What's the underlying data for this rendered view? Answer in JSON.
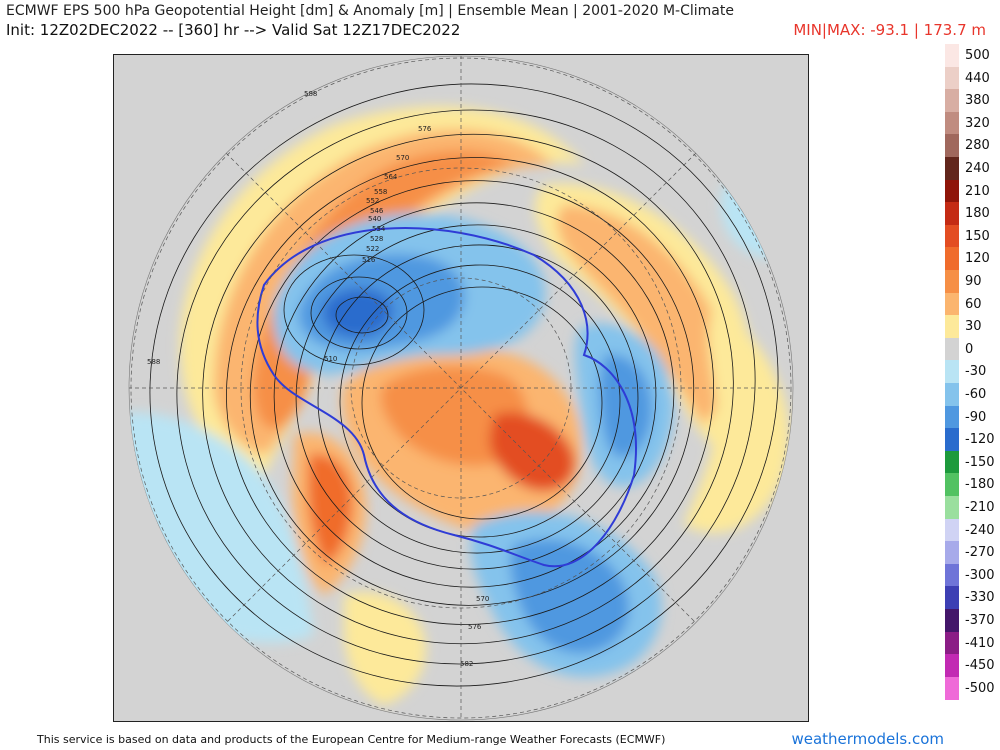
{
  "header": {
    "title_line1": "ECMWF EPS 500 hPa Geopotential Height [dm] & Anomaly [m] | Ensemble Mean | 2001-2020 M-Climate",
    "title_line2": "Init: 12Z02DEC2022 -- [360] hr --> Valid Sat 12Z17DEC2022",
    "minmax": "MIN|MAX: -93.1 | 173.7 m"
  },
  "map": {
    "contour_labels": [
      "576",
      "570",
      "564",
      "558",
      "552",
      "546",
      "540",
      "534",
      "528",
      "522",
      "516",
      "510",
      "588",
      "588",
      "582",
      "576",
      "570"
    ]
  },
  "colorbar": {
    "entries": [
      {
        "label": "500",
        "color": "#fbe7e4"
      },
      {
        "label": "440",
        "color": "#eccfc7"
      },
      {
        "label": "380",
        "color": "#d8aea3"
      },
      {
        "label": "320",
        "color": "#c08c80"
      },
      {
        "label": "280",
        "color": "#a0685d"
      },
      {
        "label": "240",
        "color": "#62261c"
      },
      {
        "label": "210",
        "color": "#8f1509"
      },
      {
        "label": "180",
        "color": "#c42b14"
      },
      {
        "label": "150",
        "color": "#e34d22"
      },
      {
        "label": "120",
        "color": "#f06c2c"
      },
      {
        "label": "90",
        "color": "#f68f46"
      },
      {
        "label": "60",
        "color": "#fbb56f"
      },
      {
        "label": "30",
        "color": "#fde99a"
      },
      {
        "label": "0",
        "color": "#d3d3d3"
      },
      {
        "label": "-30",
        "color": "#b9e4f4"
      },
      {
        "label": "-60",
        "color": "#84c3ec"
      },
      {
        "label": "-90",
        "color": "#4f98e0"
      },
      {
        "label": "-120",
        "color": "#2a6ccd"
      },
      {
        "label": "-150",
        "color": "#1d9a3c"
      },
      {
        "label": "-180",
        "color": "#52c262"
      },
      {
        "label": "-210",
        "color": "#9adf9e"
      },
      {
        "label": "-240",
        "color": "#d0d3f4"
      },
      {
        "label": "-270",
        "color": "#a7aaea"
      },
      {
        "label": "-300",
        "color": "#6f74d8"
      },
      {
        "label": "-330",
        "color": "#3d3fb4"
      },
      {
        "label": "-370",
        "color": "#44166a"
      },
      {
        "label": "-410",
        "color": "#8b1d86"
      },
      {
        "label": "-450",
        "color": "#c22ab3"
      },
      {
        "label": "-500",
        "color": "#ef6ad8"
      }
    ]
  },
  "footer": {
    "attribution": "This service is based on data and products of the European Centre for Medium-range Weather Forecasts (ECMWF)",
    "site": "weathermodels.com"
  }
}
